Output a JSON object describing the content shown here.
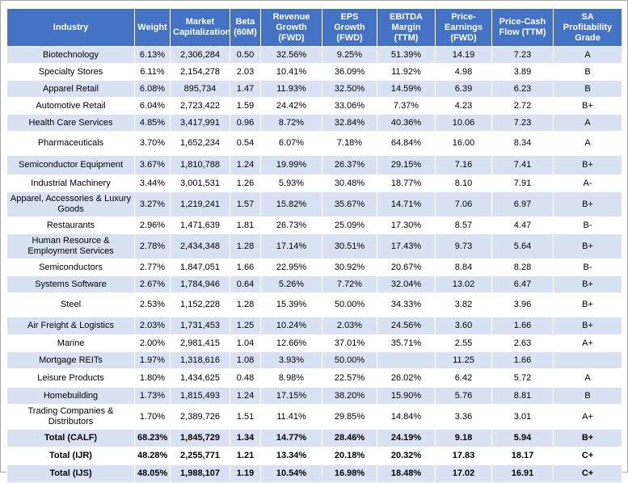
{
  "table": {
    "header": [
      "Industry",
      "Weight",
      "Market Capitalization",
      "Beta (60M)",
      "Revenue Growth (FWD)",
      "EPS Growth (FWD)",
      "EBITDA Margin (TTM)",
      "Price-Earnings (FWD)",
      "Price-Cash Flow (TTM)",
      "SA Profitability Grade"
    ],
    "rows": [
      [
        "Biotechnology",
        "6.13%",
        "2,306,284",
        "0.50",
        "32.56%",
        "9.25%",
        "51.39%",
        "14.19",
        "7.23",
        "A"
      ],
      [
        "Specialty Stores",
        "6.11%",
        "2,154,278",
        "2.03",
        "10.41%",
        "36.09%",
        "11.92%",
        "4.98",
        "3.89",
        "B"
      ],
      [
        "Apparel Retail",
        "6.08%",
        "895,734",
        "1.47",
        "11.93%",
        "32.50%",
        "14.59%",
        "6.39",
        "6.23",
        "B"
      ],
      [
        "Automotive Retail",
        "6.04%",
        "2,723,422",
        "1.59",
        "24.42%",
        "33.06%",
        "7.37%",
        "4.23",
        "2.72",
        "B+"
      ],
      [
        "Health Care Services",
        "4.85%",
        "3,417,991",
        "0.96",
        "8.72%",
        "32.84%",
        "40.36%",
        "10.06",
        "7.23",
        "A"
      ],
      [
        "Pharmaceuticals",
        "3.70%",
        "1,652,234",
        "0.54",
        "6.07%",
        "7.18%",
        "64.84%",
        "16.00",
        "8.34",
        "A"
      ],
      [
        "Semiconductor Equipment",
        "3.67%",
        "1,810,788",
        "1.24",
        "19.99%",
        "26.37%",
        "29.15%",
        "7.16",
        "7.41",
        "B+"
      ],
      [
        "Industrial Machinery",
        "3.44%",
        "3,001,531",
        "1.26",
        "5.93%",
        "30.48%",
        "18.77%",
        "8.10",
        "7.91",
        "A-"
      ],
      [
        "Apparel, Accessories & Luxury Goods",
        "3.27%",
        "1,219,241",
        "1.57",
        "15.82%",
        "35.67%",
        "14.71%",
        "7.06",
        "6.97",
        "B+"
      ],
      [
        "Restaurants",
        "2.96%",
        "1,471,639",
        "1.81",
        "26.73%",
        "25.09%",
        "17.30%",
        "8.57",
        "4.47",
        "B-"
      ],
      [
        "Human Resource & Employment Services",
        "2.78%",
        "2,434,348",
        "1.28",
        "17.14%",
        "30.51%",
        "17.43%",
        "9.73",
        "5.64",
        "B+"
      ],
      [
        "Semiconductors",
        "2.77%",
        "1,847,051",
        "1.66",
        "22.95%",
        "30.92%",
        "20.67%",
        "8.84",
        "8.28",
        "B-"
      ],
      [
        "Systems Software",
        "2.67%",
        "1,784,946",
        "0.64",
        "5.26%",
        "7.72%",
        "32.04%",
        "13.02",
        "6.47",
        "B+"
      ],
      [
        "Steel",
        "2.53%",
        "1,152,228",
        "1.28",
        "15.39%",
        "50.00%",
        "34.33%",
        "3.82",
        "3.96",
        "B+"
      ],
      [
        "Air Freight & Logistics",
        "2.03%",
        "1,731,453",
        "1.25",
        "10.24%",
        "2.03%",
        "24.56%",
        "3.60",
        "1.66",
        "B+"
      ],
      [
        "Marine",
        "2.00%",
        "2,981,415",
        "1.04",
        "12.66%",
        "37.01%",
        "35.71%",
        "2.55",
        "2.63",
        "A+"
      ],
      [
        "Mortgage REITs",
        "1.97%",
        "1,318,616",
        "1.08",
        "3.93%",
        "50.00%",
        null,
        "11.25",
        "1.66",
        null
      ],
      [
        "Leisure Products",
        "1.80%",
        "1,434,625",
        "0.48",
        "8.98%",
        "22.57%",
        "26.02%",
        "6.42",
        "5.72",
        "A"
      ],
      [
        "Homebuilding",
        "1.73%",
        "1,815,493",
        "1.24",
        "17.15%",
        "38.20%",
        "15.90%",
        "5.76",
        "8.81",
        "B"
      ],
      [
        "Trading Companies & Distributors",
        "1.70%",
        "2,389,726",
        "1.51",
        "11.41%",
        "29.85%",
        "14.84%",
        "3.36",
        "3.01",
        "A+"
      ]
    ],
    "total_rows": [
      [
        "Total (CALF)",
        "68.23%",
        "1,845,729",
        "1.34",
        "14.77%",
        "28.46%",
        "24.19%",
        "9.18",
        "5.94",
        "B+"
      ],
      [
        "Total (IJR)",
        "48.28%",
        "2,255,771",
        "1.21",
        "13.34%",
        "20.18%",
        "20.32%",
        "17.83",
        "18.17",
        "C+"
      ],
      [
        "Total (IJS)",
        "48.05%",
        "1,988,107",
        "1.19",
        "10.54%",
        "16.98%",
        "18.48%",
        "17.02",
        "16.91",
        "C+"
      ]
    ]
  }
}
